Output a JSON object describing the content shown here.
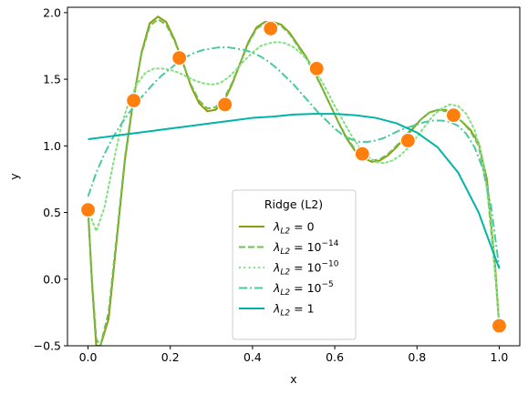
{
  "chart_data": {
    "type": "line",
    "xlabel": "x",
    "ylabel": "y",
    "xlim": [
      -0.05,
      1.05
    ],
    "ylim": [
      -0.5,
      2.04
    ],
    "xticks": [
      "0.0",
      "0.2",
      "0.4",
      "0.6",
      "0.8",
      "1.0"
    ],
    "xtick_values": [
      0,
      0.2,
      0.4,
      0.6,
      0.8,
      1.0
    ],
    "yticks": [
      "−0.5",
      "0.0",
      "0.5",
      "1.0",
      "1.5",
      "2.0"
    ],
    "ytick_values": [
      -0.5,
      0,
      0.5,
      1.0,
      1.5,
      2.0
    ],
    "grid": false,
    "legend_placement": "lower center",
    "legend_title": "Ridge (L2)",
    "points": {
      "color": "#ff7f0e",
      "x": [
        0.0,
        0.111,
        0.222,
        0.333,
        0.444,
        0.556,
        0.667,
        0.778,
        0.889,
        1.0
      ],
      "y": [
        0.52,
        1.34,
        1.66,
        1.31,
        1.88,
        1.58,
        0.94,
        1.04,
        1.23,
        -0.35
      ]
    },
    "series": [
      {
        "name": "λL2 = 0",
        "label_base": "λ",
        "label_sub": "L2",
        "label_rhs": " = 0",
        "label_sup": "",
        "color": "#8c9d0c",
        "dash": "solid",
        "x": [
          0.0,
          0.01,
          0.02,
          0.03,
          0.05,
          0.07,
          0.09,
          0.11,
          0.13,
          0.15,
          0.17,
          0.19,
          0.21,
          0.23,
          0.25,
          0.27,
          0.29,
          0.31,
          0.33,
          0.35,
          0.37,
          0.39,
          0.41,
          0.43,
          0.45,
          0.47,
          0.49,
          0.51,
          0.53,
          0.55,
          0.57,
          0.59,
          0.61,
          0.63,
          0.65,
          0.67,
          0.69,
          0.71,
          0.73,
          0.75,
          0.77,
          0.79,
          0.81,
          0.83,
          0.85,
          0.87,
          0.89,
          0.91,
          0.93,
          0.95,
          0.97,
          0.99,
          1.0
        ],
        "y": [
          0.52,
          -0.05,
          -0.5,
          -0.5,
          -0.3,
          0.3,
          0.9,
          1.34,
          1.7,
          1.92,
          1.97,
          1.93,
          1.8,
          1.63,
          1.45,
          1.32,
          1.26,
          1.27,
          1.33,
          1.46,
          1.62,
          1.78,
          1.89,
          1.93,
          1.93,
          1.91,
          1.85,
          1.76,
          1.67,
          1.56,
          1.43,
          1.3,
          1.17,
          1.05,
          0.96,
          0.91,
          0.88,
          0.89,
          0.93,
          0.99,
          1.06,
          1.13,
          1.2,
          1.25,
          1.27,
          1.27,
          1.23,
          1.18,
          1.12,
          1.02,
          0.75,
          0.1,
          -0.35
        ]
      },
      {
        "name": "λL2 = 10^-14",
        "label_base": "λ",
        "label_sub": "L2",
        "label_rhs": " = 10",
        "label_sup": "−14",
        "color": "#6fbf50",
        "dash": "dashed",
        "x": [
          0.0,
          0.01,
          0.02,
          0.03,
          0.05,
          0.07,
          0.09,
          0.11,
          0.13,
          0.15,
          0.17,
          0.19,
          0.21,
          0.23,
          0.25,
          0.27,
          0.29,
          0.31,
          0.33,
          0.35,
          0.37,
          0.39,
          0.41,
          0.43,
          0.45,
          0.47,
          0.49,
          0.51,
          0.53,
          0.55,
          0.57,
          0.59,
          0.61,
          0.63,
          0.65,
          0.67,
          0.69,
          0.71,
          0.73,
          0.75,
          0.77,
          0.79,
          0.81,
          0.83,
          0.85,
          0.87,
          0.89,
          0.91,
          0.93,
          0.95,
          0.97,
          0.99,
          1.0
        ],
        "y": [
          0.52,
          -0.02,
          -0.45,
          -0.5,
          -0.25,
          0.33,
          0.92,
          1.35,
          1.69,
          1.9,
          1.95,
          1.91,
          1.79,
          1.63,
          1.46,
          1.34,
          1.28,
          1.29,
          1.35,
          1.47,
          1.62,
          1.77,
          1.88,
          1.92,
          1.92,
          1.9,
          1.84,
          1.75,
          1.66,
          1.55,
          1.43,
          1.3,
          1.17,
          1.06,
          0.97,
          0.92,
          0.89,
          0.9,
          0.94,
          1.0,
          1.07,
          1.14,
          1.2,
          1.25,
          1.27,
          1.26,
          1.23,
          1.18,
          1.11,
          1.0,
          0.7,
          0.05,
          -0.35
        ]
      },
      {
        "name": "λL2 = 10^-10",
        "label_base": "λ",
        "label_sub": "L2",
        "label_rhs": " = 10",
        "label_sup": "−10",
        "color": "#82e07e",
        "dash": "dotted",
        "x": [
          0.0,
          0.02,
          0.04,
          0.06,
          0.08,
          0.1,
          0.12,
          0.14,
          0.16,
          0.18,
          0.2,
          0.22,
          0.24,
          0.26,
          0.28,
          0.3,
          0.32,
          0.34,
          0.36,
          0.38,
          0.4,
          0.42,
          0.44,
          0.46,
          0.48,
          0.5,
          0.52,
          0.54,
          0.56,
          0.58,
          0.6,
          0.62,
          0.64,
          0.66,
          0.68,
          0.7,
          0.72,
          0.74,
          0.76,
          0.78,
          0.8,
          0.82,
          0.84,
          0.86,
          0.88,
          0.9,
          0.92,
          0.94,
          0.96,
          0.98,
          1.0
        ],
        "y": [
          0.52,
          0.36,
          0.54,
          0.85,
          1.14,
          1.34,
          1.47,
          1.55,
          1.58,
          1.58,
          1.57,
          1.55,
          1.52,
          1.49,
          1.47,
          1.46,
          1.47,
          1.51,
          1.57,
          1.64,
          1.7,
          1.75,
          1.77,
          1.78,
          1.77,
          1.74,
          1.69,
          1.62,
          1.53,
          1.42,
          1.3,
          1.19,
          1.08,
          0.99,
          0.92,
          0.88,
          0.87,
          0.89,
          0.93,
          0.99,
          1.07,
          1.15,
          1.23,
          1.28,
          1.31,
          1.3,
          1.24,
          1.12,
          0.9,
          0.45,
          -0.33
        ]
      },
      {
        "name": "λL2 = 10^-5",
        "label_base": "λ",
        "label_sub": "L2",
        "label_rhs": " = 10",
        "label_sup": "−5",
        "color": "#4cc99e",
        "dash": "dashdot",
        "x": [
          0.0,
          0.02,
          0.04,
          0.06,
          0.08,
          0.1,
          0.12,
          0.14,
          0.16,
          0.18,
          0.2,
          0.22,
          0.24,
          0.26,
          0.28,
          0.3,
          0.32,
          0.34,
          0.36,
          0.38,
          0.4,
          0.42,
          0.44,
          0.46,
          0.48,
          0.5,
          0.52,
          0.54,
          0.56,
          0.58,
          0.6,
          0.62,
          0.64,
          0.66,
          0.68,
          0.7,
          0.72,
          0.74,
          0.76,
          0.78,
          0.8,
          0.82,
          0.84,
          0.86,
          0.88,
          0.9,
          0.92,
          0.94,
          0.96,
          0.98,
          1.0
        ],
        "y": [
          0.62,
          0.8,
          0.94,
          1.06,
          1.16,
          1.25,
          1.33,
          1.4,
          1.47,
          1.53,
          1.58,
          1.63,
          1.67,
          1.7,
          1.72,
          1.73,
          1.74,
          1.74,
          1.73,
          1.72,
          1.7,
          1.67,
          1.63,
          1.58,
          1.52,
          1.46,
          1.39,
          1.32,
          1.25,
          1.19,
          1.13,
          1.08,
          1.05,
          1.03,
          1.03,
          1.04,
          1.06,
          1.09,
          1.12,
          1.14,
          1.16,
          1.18,
          1.19,
          1.19,
          1.18,
          1.15,
          1.09,
          0.99,
          0.83,
          0.55,
          0.08
        ]
      },
      {
        "name": "λL2 = 1",
        "label_base": "λ",
        "label_sub": "L2",
        "label_rhs": " = 1",
        "label_sup": "",
        "color": "#00b5a5",
        "dash": "solid",
        "x": [
          0.0,
          0.05,
          0.1,
          0.15,
          0.2,
          0.25,
          0.3,
          0.35,
          0.4,
          0.45,
          0.5,
          0.55,
          0.6,
          0.65,
          0.7,
          0.75,
          0.8,
          0.85,
          0.9,
          0.95,
          0.97,
          1.0
        ],
        "y": [
          1.05,
          1.07,
          1.09,
          1.11,
          1.13,
          1.15,
          1.17,
          1.19,
          1.21,
          1.22,
          1.235,
          1.24,
          1.24,
          1.23,
          1.21,
          1.17,
          1.1,
          0.99,
          0.8,
          0.5,
          0.33,
          0.08
        ]
      }
    ]
  }
}
